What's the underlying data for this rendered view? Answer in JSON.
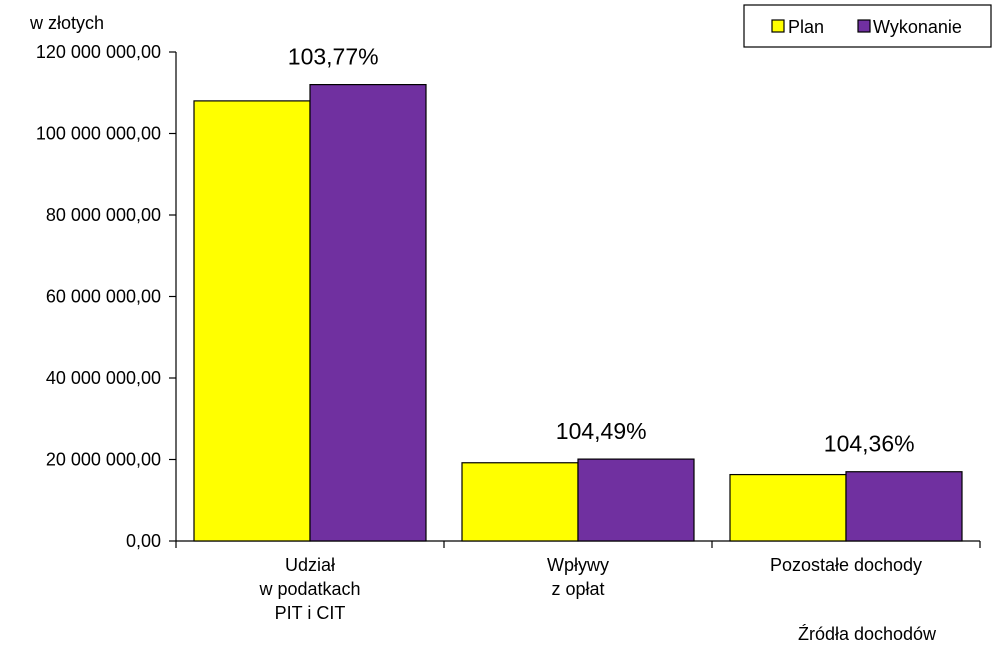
{
  "chart_data": {
    "type": "bar",
    "unit_label": "w złotych",
    "xlabel": "Źródła dochodów",
    "categories": [
      [
        "Udział",
        "w podatkach",
        "PIT i CIT"
      ],
      [
        "Wpływy",
        "z opłat"
      ],
      [
        "Pozostałe dochody"
      ]
    ],
    "series": [
      {
        "name": "Plan",
        "color": "#ffff00",
        "values": [
          108000000,
          19200000,
          16300000
        ]
      },
      {
        "name": "Wykonanie",
        "color": "#7030a0",
        "values": [
          112000000,
          20100000,
          17000000
        ]
      }
    ],
    "data_labels": [
      "103,77%",
      "104,49%",
      "104,36%"
    ],
    "ylim": [
      0,
      120000000
    ],
    "y_ticks": [
      {
        "value": 0,
        "label": "0,00"
      },
      {
        "value": 20000000,
        "label": "20 000 000,00"
      },
      {
        "value": 40000000,
        "label": "40 000 000,00"
      },
      {
        "value": 60000000,
        "label": "60 000 000,00"
      },
      {
        "value": 80000000,
        "label": "80 000 000,00"
      },
      {
        "value": 100000000,
        "label": "100 000 000,00"
      },
      {
        "value": 120000000,
        "label": "120 000 000,00"
      }
    ],
    "grid": false,
    "legend_position": "top-right"
  }
}
